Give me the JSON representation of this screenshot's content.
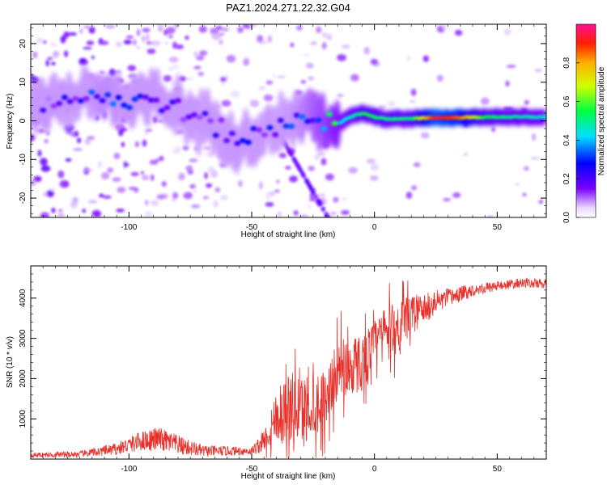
{
  "figure_title": "PAZ1.2024.271.22.32.G04",
  "chart_data": [
    {
      "type": "heatmap",
      "xlabel": "Height of straight line (km)",
      "ylabel": "Frequency (Hz)",
      "xlim": [
        -140,
        70
      ],
      "ylim": [
        -25,
        25
      ],
      "xticks": [
        -100,
        -50,
        0,
        50
      ],
      "yticks": [
        -20,
        -10,
        0,
        10,
        20
      ],
      "colorbar": {
        "label": "Normalized spectral amplitude",
        "range": [
          0,
          1
        ],
        "ticks": [
          "0.0",
          "0.2",
          "0.4",
          "0.6",
          "0.8"
        ],
        "colormap": "rainbow (purple-blue-cyan-green-yellow-red-magenta)"
      },
      "ridge": {
        "description": "frequency of dominant signal vs height",
        "points": [
          [
            -135,
            5
          ],
          [
            -120,
            6
          ],
          [
            -110,
            7
          ],
          [
            -100,
            4
          ],
          [
            -90,
            6
          ],
          [
            -80,
            3
          ],
          [
            -70,
            0
          ],
          [
            -60,
            -3
          ],
          [
            -55,
            -5
          ],
          [
            -50,
            -4
          ],
          [
            -45,
            -3
          ],
          [
            -40,
            -2
          ],
          [
            -35,
            0
          ],
          [
            -30,
            2
          ],
          [
            -25,
            1
          ],
          [
            -20,
            0
          ],
          [
            -15,
            -1
          ],
          [
            -10,
            1
          ],
          [
            -5,
            2
          ],
          [
            0,
            1
          ],
          [
            5,
            0.5
          ],
          [
            10,
            0.5
          ],
          [
            15,
            0.5
          ],
          [
            20,
            0.8
          ],
          [
            30,
            0.8
          ],
          [
            40,
            0.9
          ],
          [
            50,
            1
          ],
          [
            60,
            1
          ],
          [
            70,
            1
          ]
        ],
        "amplitude": [
          [
            -135,
            0.15
          ],
          [
            -110,
            0.25
          ],
          [
            -90,
            0.2
          ],
          [
            -70,
            0.15
          ],
          [
            -55,
            0.2
          ],
          [
            -40,
            0.2
          ],
          [
            -30,
            0.25
          ],
          [
            -20,
            0.35
          ],
          [
            -10,
            0.45
          ],
          [
            -3,
            0.55
          ],
          [
            5,
            0.5
          ],
          [
            15,
            0.5
          ],
          [
            25,
            0.95
          ],
          [
            35,
            0.85
          ],
          [
            45,
            0.55
          ],
          [
            55,
            0.5
          ],
          [
            70,
            0.45
          ]
        ]
      }
    },
    {
      "type": "line",
      "xlabel": "Height of straight line (km)",
      "ylabel": "SNR (10 * v/v)",
      "xlim": [
        -140,
        70
      ],
      "ylim": [
        0,
        4800
      ],
      "xticks": [
        -100,
        -50,
        0,
        50
      ],
      "yticks": [
        1000,
        2000,
        3000,
        4000
      ],
      "series": [
        {
          "color": "#e8302a",
          "envelope_x": [
            -140,
            -120,
            -105,
            -95,
            -88,
            -80,
            -70,
            -60,
            -50,
            -45,
            -42,
            -40,
            -35,
            -30,
            -25,
            -20,
            -15,
            -10,
            -5,
            0,
            5,
            10,
            15,
            20,
            25,
            30,
            40,
            50,
            60,
            70
          ],
          "envelope_y": [
            100,
            120,
            250,
            450,
            500,
            350,
            200,
            200,
            200,
            450,
            800,
            1100,
            1300,
            1200,
            1400,
            1500,
            2200,
            2300,
            2400,
            2900,
            3200,
            3300,
            3600,
            3700,
            3900,
            4000,
            4200,
            4300,
            4380,
            4350
          ],
          "noise_amplitude_y": [
            60,
            80,
            150,
            250,
            300,
            250,
            150,
            120,
            100,
            300,
            700,
            900,
            1100,
            1100,
            1000,
            900,
            900,
            1000,
            900,
            700,
            700,
            900,
            500,
            400,
            300,
            250,
            150,
            120,
            120,
            120
          ]
        }
      ]
    }
  ]
}
